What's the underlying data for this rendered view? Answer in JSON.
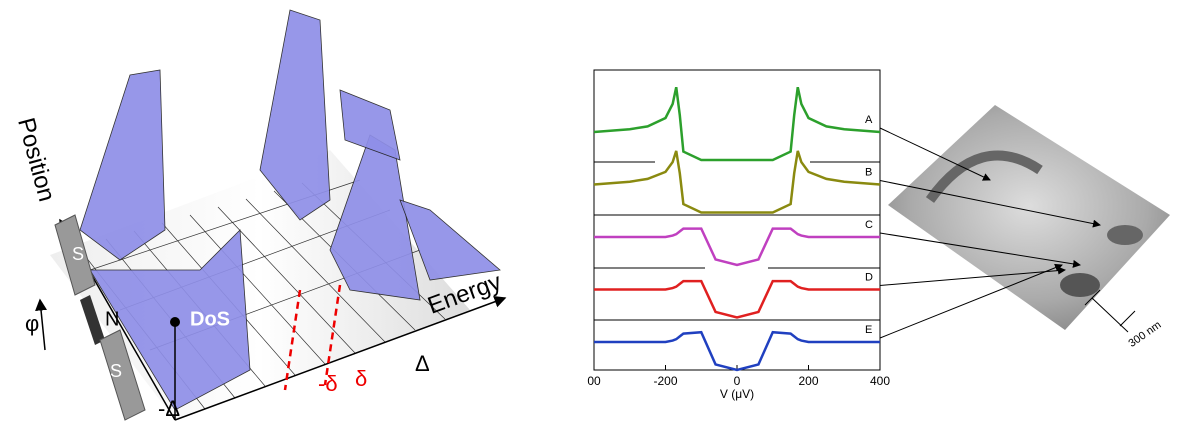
{
  "left_figure": {
    "axis_position": "Position",
    "axis_energy": "Energy",
    "dos": "DoS",
    "n_label": "N",
    "phi": "φ",
    "s_top": "S",
    "s_bottom": "S",
    "tick_neg_Delta": "-Δ",
    "tick_neg_delta": "-δ",
    "tick_delta": "δ",
    "tick_Delta": "Δ"
  },
  "chart_data": {
    "type": "line",
    "x_label": "V (μV)",
    "x": [
      -400,
      -350,
      -300,
      -250,
      -200,
      -180,
      -170,
      -160,
      -150,
      -100,
      -60,
      0,
      60,
      100,
      150,
      160,
      170,
      180,
      200,
      250,
      300,
      350,
      400
    ],
    "series": [
      {
        "name": "A",
        "color": "#2ca02c",
        "values": [
          1,
          1.05,
          1.1,
          1.2,
          1.5,
          2,
          2.6,
          1.6,
          0.3,
          0,
          0,
          0,
          0,
          0,
          0.3,
          1.6,
          2.6,
          2,
          1.5,
          1.2,
          1.1,
          1.05,
          1
        ]
      },
      {
        "name": "B",
        "color": "#8a8a10",
        "values": [
          1,
          1.05,
          1.1,
          1.2,
          1.45,
          1.8,
          2.2,
          1.4,
          0.3,
          0,
          0,
          0,
          0,
          0,
          0.3,
          1.4,
          2.2,
          1.8,
          1.45,
          1.2,
          1.1,
          1.05,
          1
        ]
      },
      {
        "name": "C",
        "color": "#c040c0",
        "values": [
          1,
          1,
          1,
          1,
          1,
          1.05,
          1.1,
          1.2,
          1.3,
          1.3,
          0.2,
          0,
          0.2,
          1.3,
          1.3,
          1.2,
          1.1,
          1.05,
          1,
          1,
          1,
          1,
          1
        ]
      },
      {
        "name": "D",
        "color": "#e02020",
        "values": [
          1,
          1,
          1,
          1,
          1,
          1.05,
          1.1,
          1.2,
          1.3,
          1.3,
          0.2,
          0,
          0.2,
          1.3,
          1.3,
          1.2,
          1.1,
          1.05,
          1,
          1,
          1,
          1,
          1
        ]
      },
      {
        "name": "E",
        "color": "#2040c0",
        "values": [
          1,
          1,
          1,
          1,
          1,
          1.05,
          1.1,
          1.2,
          1.3,
          1.35,
          0.2,
          0,
          0.2,
          1.35,
          1.3,
          1.2,
          1.1,
          1.05,
          1,
          1,
          1,
          1,
          1
        ]
      }
    ],
    "xlim": [
      -400,
      400
    ],
    "xticks": [
      {
        "value": -400,
        "label": "00"
      },
      -200,
      0,
      200,
      400
    ]
  },
  "right_figure": {
    "scale_label": "300 nm"
  }
}
